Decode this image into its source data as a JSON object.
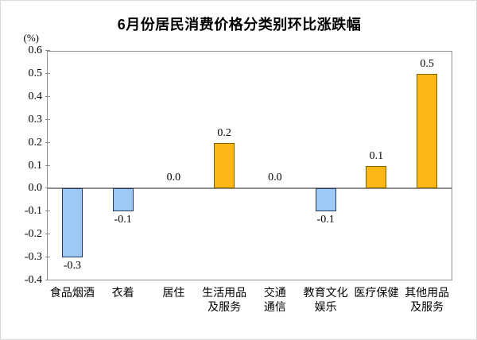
{
  "chart_data": {
    "type": "bar",
    "title": "6月份居民消费价格分类别环比涨跌幅",
    "ylabel": "(%)",
    "xlabel": "",
    "categories": [
      [
        "食品烟酒"
      ],
      [
        "衣着"
      ],
      [
        "居住"
      ],
      [
        "生活用品",
        "及服务"
      ],
      [
        "交通",
        "通信"
      ],
      [
        "教育文化",
        "娱乐"
      ],
      [
        "医疗保健"
      ],
      [
        "其他用品",
        "及服务"
      ]
    ],
    "values": [
      -0.3,
      -0.1,
      0.0,
      0.2,
      0.0,
      -0.1,
      0.1,
      0.5
    ],
    "ylim": [
      -0.4,
      0.6
    ],
    "ytick_step": 0.1,
    "yticks": [
      0.6,
      0.5,
      0.4,
      0.3,
      0.2,
      0.1,
      0.0,
      -0.1,
      -0.2,
      -0.3,
      -0.4
    ],
    "grid": false,
    "legend": null,
    "colors": {
      "positive_fill": "#FBB817",
      "positive_border": "#7F6000",
      "negative_fill": "#9DC9F4",
      "negative_border": "#1F3864",
      "axis_line": "#8E8E8E",
      "zero_line": "#8E8E8E",
      "text": "#000000"
    }
  }
}
